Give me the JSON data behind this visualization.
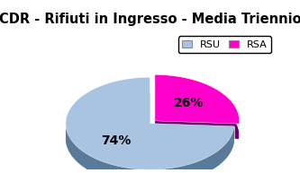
{
  "title": "CDR - Rifiuti in Ingresso - Media Triennio",
  "slices": [
    74,
    26
  ],
  "labels": [
    "74%",
    "26%"
  ],
  "legend_labels": [
    "RSU",
    "RSA"
  ],
  "colors": [
    "#a8c4e0",
    "#ff00cc"
  ],
  "shadow_colors": [
    "#5a7a9a",
    "#660066"
  ],
  "startangle": 90,
  "title_fontsize": 10.5,
  "label_fontsize": 10,
  "explode": [
    0.0,
    0.08
  ]
}
